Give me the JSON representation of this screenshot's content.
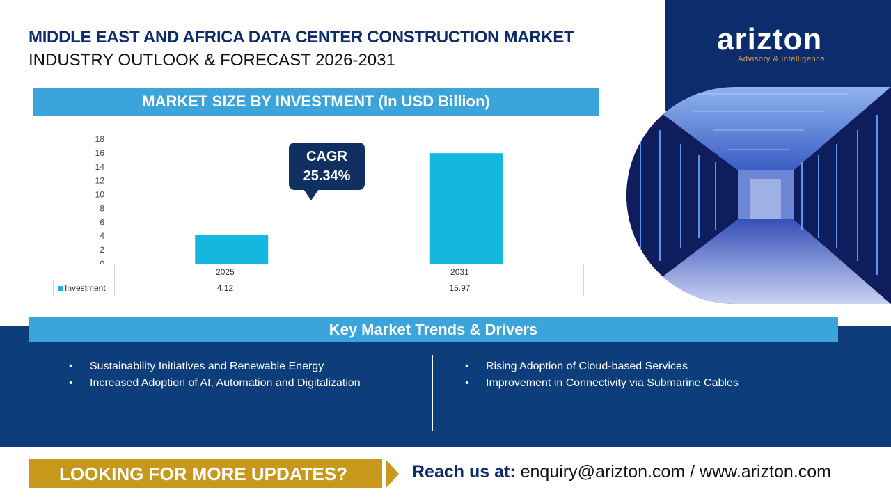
{
  "header": {
    "title_line1": "MIDDLE EAST AND AFRICA DATA CENTER CONSTRUCTION MARKET",
    "title_line2": "INDUSTRY OUTLOOK & FORECAST 2026-2031"
  },
  "logo": {
    "name": "arizton",
    "tagline": "Advisory & Intelligence"
  },
  "chart_section": {
    "heading": "MARKET SIZE BY INVESTMENT (In USD Billion)",
    "cagr_label": "CAGR",
    "cagr_value": "25.34%"
  },
  "chart_data": {
    "type": "bar",
    "title": "MARKET SIZE BY INVESTMENT (In USD Billion)",
    "categories": [
      "2025",
      "2031"
    ],
    "series": [
      {
        "name": "Investment",
        "values": [
          4.12,
          15.97
        ],
        "display": [
          "4.12",
          "15.97"
        ]
      }
    ],
    "ylim": [
      0,
      18
    ],
    "yticks": [
      0,
      2,
      4,
      6,
      8,
      10,
      12,
      14,
      16,
      18
    ],
    "grid": false,
    "legend": "data-table"
  },
  "trends": {
    "heading": "Key Market Trends & Drivers",
    "left": [
      "Sustainability Initiatives and Renewable Energy",
      "Increased Adoption of AI, Automation and Digitalization"
    ],
    "right": [
      "Rising Adoption of Cloud-based Services",
      "Improvement in Connectivity via Submarine Cables"
    ]
  },
  "footer": {
    "cta": "LOOKING FOR MORE UPDATES?",
    "reach_label": "Reach us at:",
    "contact": "enquiry@arizton.com / www.arizton.com"
  },
  "colors": {
    "navy": "#0d2c6b",
    "sky_blue": "#3aa4db",
    "bar_cyan": "#14b8de",
    "gold": "#c8981c",
    "callout": "#0f3060"
  }
}
